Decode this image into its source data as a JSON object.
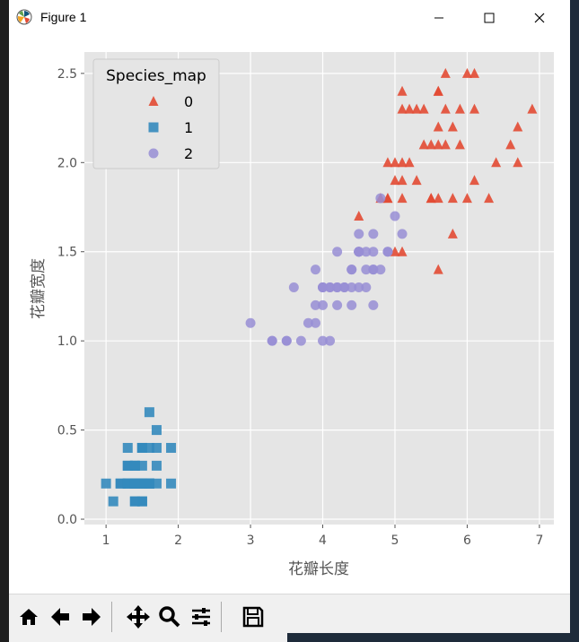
{
  "window": {
    "title": "Figure 1"
  },
  "toolbar": {
    "buttons": [
      {
        "name": "home-icon"
      },
      {
        "name": "back-icon"
      },
      {
        "name": "forward-icon"
      },
      {
        "name": "pan-icon"
      },
      {
        "name": "zoom-icon"
      },
      {
        "name": "configure-subplots-icon"
      },
      {
        "name": "save-icon"
      }
    ]
  },
  "chart_data": {
    "type": "scatter",
    "xlabel": "花瓣长度",
    "ylabel": "花瓣宽度",
    "xlim": [
      0.7,
      7.2
    ],
    "ylim": [
      -0.03,
      2.62
    ],
    "xticks": [
      "1",
      "2",
      "3",
      "4",
      "5",
      "6",
      "7"
    ],
    "yticks": [
      "0.0",
      "0.5",
      "1.0",
      "1.5",
      "2.0",
      "2.5"
    ],
    "grid": true,
    "legend": {
      "title": "Species_map",
      "position": "top-left"
    },
    "series": [
      {
        "name": "0",
        "marker": "triangle",
        "color": "#e24a33",
        "points": [
          [
            6.0,
            2.5
          ],
          [
            5.1,
            1.9
          ],
          [
            5.9,
            2.1
          ],
          [
            5.6,
            1.8
          ],
          [
            5.8,
            2.2
          ],
          [
            6.6,
            2.1
          ],
          [
            4.5,
            1.7
          ],
          [
            6.3,
            1.8
          ],
          [
            5.8,
            1.8
          ],
          [
            6.1,
            2.5
          ],
          [
            5.1,
            2.0
          ],
          [
            5.3,
            1.9
          ],
          [
            5.5,
            2.1
          ],
          [
            5.0,
            2.0
          ],
          [
            5.1,
            2.4
          ],
          [
            5.3,
            2.3
          ],
          [
            5.5,
            1.8
          ],
          [
            6.7,
            2.2
          ],
          [
            6.9,
            2.3
          ],
          [
            5.0,
            1.5
          ],
          [
            5.7,
            2.3
          ],
          [
            4.9,
            2.0
          ],
          [
            6.7,
            2.0
          ],
          [
            4.9,
            1.8
          ],
          [
            5.7,
            2.1
          ],
          [
            6.0,
            1.8
          ],
          [
            4.8,
            1.8
          ],
          [
            4.9,
            1.8
          ],
          [
            5.6,
            2.1
          ],
          [
            5.8,
            1.6
          ],
          [
            6.1,
            1.9
          ],
          [
            6.4,
            2.0
          ],
          [
            5.6,
            2.2
          ],
          [
            5.1,
            1.5
          ],
          [
            5.6,
            1.4
          ],
          [
            6.1,
            2.3
          ],
          [
            5.6,
            2.4
          ],
          [
            5.5,
            1.8
          ],
          [
            5.4,
            2.1
          ],
          [
            5.6,
            2.4
          ],
          [
            5.1,
            2.3
          ],
          [
            5.9,
            2.3
          ],
          [
            5.7,
            2.5
          ],
          [
            5.2,
            2.3
          ],
          [
            5.0,
            1.9
          ],
          [
            5.2,
            2.0
          ],
          [
            5.4,
            2.3
          ],
          [
            5.1,
            1.8
          ]
        ]
      },
      {
        "name": "1",
        "marker": "square",
        "color": "#348abd",
        "points": [
          [
            1.4,
            0.2
          ],
          [
            1.3,
            0.2
          ],
          [
            1.5,
            0.2
          ],
          [
            1.4,
            0.2
          ],
          [
            1.7,
            0.4
          ],
          [
            1.4,
            0.3
          ],
          [
            1.5,
            0.2
          ],
          [
            1.4,
            0.2
          ],
          [
            1.5,
            0.1
          ],
          [
            1.5,
            0.2
          ],
          [
            1.6,
            0.2
          ],
          [
            1.4,
            0.1
          ],
          [
            1.1,
            0.1
          ],
          [
            1.2,
            0.2
          ],
          [
            1.5,
            0.4
          ],
          [
            1.3,
            0.4
          ],
          [
            1.4,
            0.3
          ],
          [
            1.7,
            0.3
          ],
          [
            1.5,
            0.3
          ],
          [
            1.7,
            0.2
          ],
          [
            1.5,
            0.4
          ],
          [
            1.0,
            0.2
          ],
          [
            1.7,
            0.5
          ],
          [
            1.9,
            0.2
          ],
          [
            1.6,
            0.2
          ],
          [
            1.6,
            0.4
          ],
          [
            1.5,
            0.2
          ],
          [
            1.4,
            0.2
          ],
          [
            1.6,
            0.2
          ],
          [
            1.6,
            0.2
          ],
          [
            1.5,
            0.4
          ],
          [
            1.5,
            0.1
          ],
          [
            1.4,
            0.2
          ],
          [
            1.2,
            0.2
          ],
          [
            1.3,
            0.2
          ],
          [
            1.4,
            0.1
          ],
          [
            1.3,
            0.2
          ],
          [
            1.5,
            0.2
          ],
          [
            1.3,
            0.3
          ],
          [
            1.3,
            0.3
          ],
          [
            1.3,
            0.2
          ],
          [
            1.6,
            0.6
          ],
          [
            1.9,
            0.4
          ],
          [
            1.4,
            0.3
          ],
          [
            1.6,
            0.2
          ],
          [
            1.4,
            0.2
          ],
          [
            1.5,
            0.2
          ],
          [
            1.4,
            0.2
          ]
        ]
      },
      {
        "name": "2",
        "marker": "circle",
        "color": "#988ed5",
        "points": [
          [
            4.7,
            1.4
          ],
          [
            4.5,
            1.5
          ],
          [
            4.9,
            1.5
          ],
          [
            4.0,
            1.3
          ],
          [
            4.6,
            1.5
          ],
          [
            4.5,
            1.3
          ],
          [
            4.7,
            1.6
          ],
          [
            3.3,
            1.0
          ],
          [
            4.6,
            1.3
          ],
          [
            3.9,
            1.4
          ],
          [
            3.5,
            1.0
          ],
          [
            4.2,
            1.5
          ],
          [
            4.0,
            1.0
          ],
          [
            4.7,
            1.4
          ],
          [
            3.6,
            1.3
          ],
          [
            4.4,
            1.4
          ],
          [
            4.5,
            1.5
          ],
          [
            4.1,
            1.0
          ],
          [
            4.5,
            1.5
          ],
          [
            3.9,
            1.1
          ],
          [
            4.8,
            1.8
          ],
          [
            4.0,
            1.3
          ],
          [
            4.9,
            1.5
          ],
          [
            4.7,
            1.2
          ],
          [
            4.3,
            1.3
          ],
          [
            4.4,
            1.4
          ],
          [
            4.8,
            1.4
          ],
          [
            5.0,
            1.7
          ],
          [
            4.5,
            1.5
          ],
          [
            3.5,
            1.0
          ],
          [
            3.8,
            1.1
          ],
          [
            3.7,
            1.0
          ],
          [
            3.9,
            1.2
          ],
          [
            5.1,
            1.6
          ],
          [
            4.5,
            1.5
          ],
          [
            4.5,
            1.6
          ],
          [
            4.7,
            1.5
          ],
          [
            4.4,
            1.3
          ],
          [
            4.1,
            1.3
          ],
          [
            4.0,
            1.3
          ],
          [
            4.4,
            1.2
          ],
          [
            4.6,
            1.4
          ],
          [
            4.0,
            1.2
          ],
          [
            3.3,
            1.0
          ],
          [
            4.2,
            1.3
          ],
          [
            4.2,
            1.2
          ],
          [
            4.2,
            1.3
          ],
          [
            4.3,
            1.3
          ],
          [
            3.0,
            1.1
          ],
          [
            4.1,
            1.3
          ]
        ]
      }
    ]
  }
}
